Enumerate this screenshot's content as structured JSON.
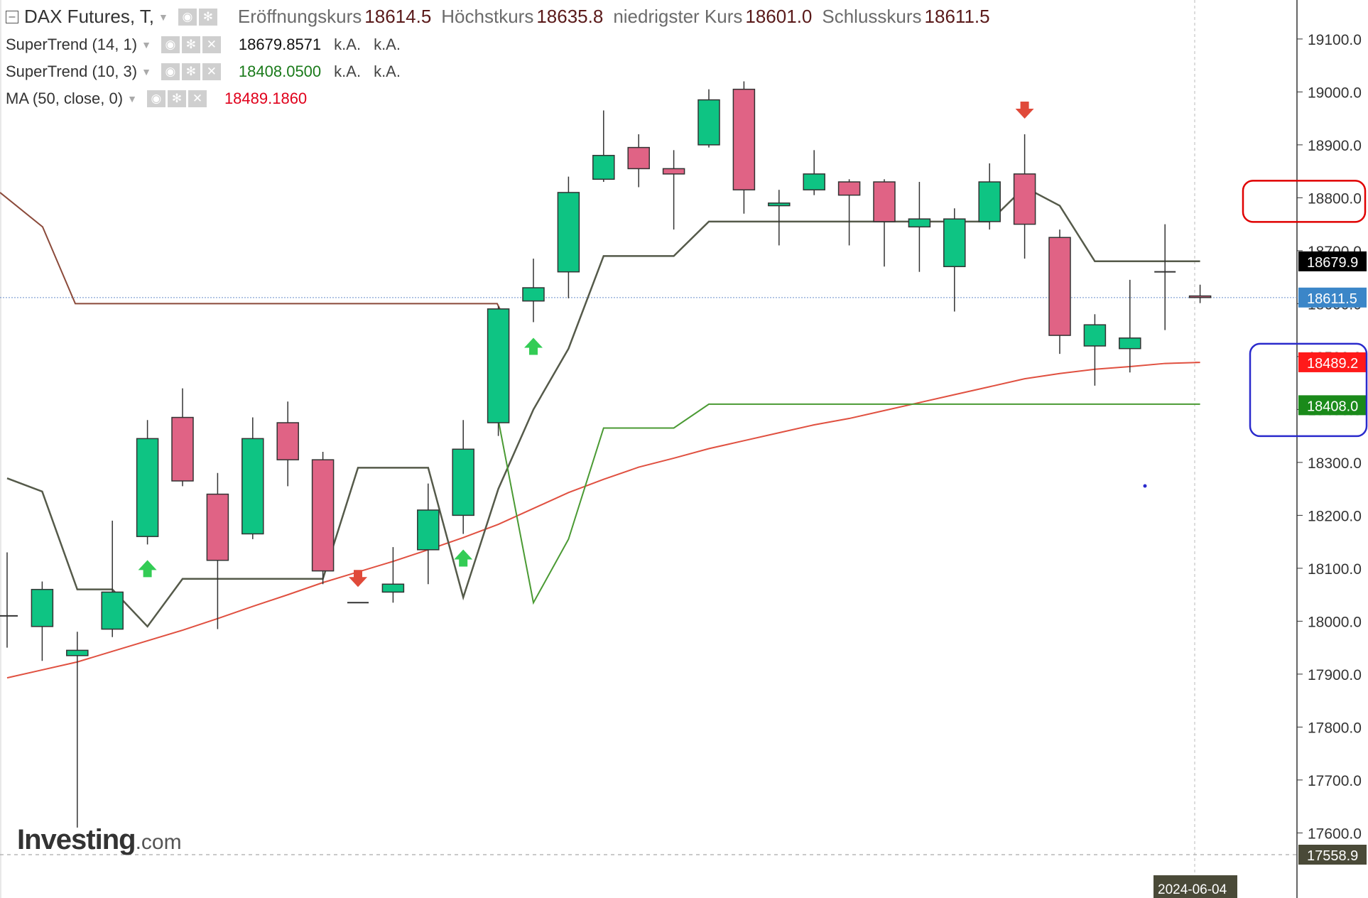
{
  "header": {
    "symbol": "DAX Futures, T,",
    "open_label": "Eröffnungskurs",
    "open_value": "18614.5",
    "high_label": "Höchstkurs",
    "high_value": "18635.8",
    "low_label": "niedrigster Kurs",
    "low_value": "18601.0",
    "close_label": "Schlusskurs",
    "close_value": "18611.5"
  },
  "indicators": [
    {
      "name": "SuperTrend (14, 1)",
      "value": "18679.8571",
      "extra1": "k.A.",
      "extra2": "k.A.",
      "color": "#111111"
    },
    {
      "name": "SuperTrend (10, 3)",
      "value": "18408.0500",
      "extra1": "k.A.",
      "extra2": "k.A.",
      "color": "#1a7a1a"
    },
    {
      "name": "MA (50, close, 0)",
      "value": "18489.1860",
      "color": "#e0001b"
    }
  ],
  "brand": {
    "name": "Investing",
    "suffix": ".com"
  },
  "colors": {
    "bull": "#0ec483",
    "bear": "#e06385",
    "candle_outline": "#333333",
    "st14": "#555a4a",
    "st14_upper": "#8b4a3a",
    "st10": "#4a9a33",
    "ma": "#e05040",
    "grid_dash": "#aaaaaa",
    "highlight_red": "#e00000",
    "highlight_blue": "#2a2acc"
  },
  "chart_data": {
    "type": "candlestick",
    "ylim": [
      17558.9,
      19150
    ],
    "yticks": [
      19100,
      19000,
      18900,
      18800,
      18700,
      18600,
      18500,
      18400,
      18300,
      18200,
      18100,
      18000,
      17900,
      17800,
      17700,
      17600
    ],
    "ytick_labels": [
      "19100.0",
      "19000.0",
      "18900.0",
      "18800.0",
      "18700.0",
      "18600.0",
      "18500.0",
      "18400.0",
      "18300.0",
      "18200.0",
      "18100.0",
      "18000.0",
      "17900.0",
      "17800.0",
      "17700.0",
      "17600.0"
    ],
    "xaxis_label": "2024-06-04",
    "candles": [
      {
        "o": 18010,
        "h": 18130,
        "l": 17950,
        "c": 18010
      },
      {
        "o": 17990,
        "h": 18075,
        "l": 17925,
        "c": 18060
      },
      {
        "o": 17935,
        "h": 17980,
        "l": 17610,
        "c": 17945
      },
      {
        "o": 17985,
        "h": 18190,
        "l": 17970,
        "c": 18055
      },
      {
        "o": 18160,
        "h": 18380,
        "l": 18145,
        "c": 18345
      },
      {
        "o": 18385,
        "h": 18440,
        "l": 18255,
        "c": 18265
      },
      {
        "o": 18240,
        "h": 18280,
        "l": 17985,
        "c": 18115
      },
      {
        "o": 18165,
        "h": 18385,
        "l": 18155,
        "c": 18345
      },
      {
        "o": 18375,
        "h": 18415,
        "l": 18255,
        "c": 18305
      },
      {
        "o": 18305,
        "h": 18320,
        "l": 18070,
        "c": 18095
      },
      {
        "o": 18035,
        "h": 18035,
        "l": 18035,
        "c": 18035
      },
      {
        "o": 18055,
        "h": 18140,
        "l": 18035,
        "c": 18070
      },
      {
        "o": 18135,
        "h": 18260,
        "l": 18070,
        "c": 18210
      },
      {
        "o": 18200,
        "h": 18380,
        "l": 18165,
        "c": 18325
      },
      {
        "o": 18375,
        "h": 18595,
        "l": 18350,
        "c": 18590
      },
      {
        "o": 18605,
        "h": 18685,
        "l": 18565,
        "c": 18630
      },
      {
        "o": 18660,
        "h": 18840,
        "l": 18610,
        "c": 18810
      },
      {
        "o": 18835,
        "h": 18965,
        "l": 18830,
        "c": 18880
      },
      {
        "o": 18895,
        "h": 18920,
        "l": 18820,
        "c": 18855
      },
      {
        "o": 18855,
        "h": 18890,
        "l": 18740,
        "c": 18845
      },
      {
        "o": 18900,
        "h": 19005,
        "l": 18895,
        "c": 18985
      },
      {
        "o": 19005,
        "h": 19020,
        "l": 18770,
        "c": 18815
      },
      {
        "o": 18785,
        "h": 18815,
        "l": 18710,
        "c": 18790
      },
      {
        "o": 18815,
        "h": 18890,
        "l": 18805,
        "c": 18845
      },
      {
        "o": 18830,
        "h": 18835,
        "l": 18710,
        "c": 18805
      },
      {
        "o": 18830,
        "h": 18835,
        "l": 18670,
        "c": 18755
      },
      {
        "o": 18745,
        "h": 18830,
        "l": 18660,
        "c": 18760
      },
      {
        "o": 18670,
        "h": 18780,
        "l": 18585,
        "c": 18760
      },
      {
        "o": 18755,
        "h": 18865,
        "l": 18740,
        "c": 18830
      },
      {
        "o": 18845,
        "h": 18920,
        "l": 18685,
        "c": 18750
      },
      {
        "o": 18725,
        "h": 18740,
        "l": 18505,
        "c": 18540
      },
      {
        "o": 18520,
        "h": 18580,
        "l": 18445,
        "c": 18560
      },
      {
        "o": 18515,
        "h": 18645,
        "l": 18470,
        "c": 18535
      },
      {
        "o": 18660,
        "h": 18750,
        "l": 18550,
        "c": 18660
      },
      {
        "o": 18614.5,
        "h": 18635.8,
        "l": 18601.0,
        "c": 18611.5
      }
    ],
    "series": [
      {
        "name": "SuperTrend (14, 1)",
        "values": [
          18270,
          18245,
          18060,
          18060,
          17990,
          18080,
          18080,
          18080,
          18080,
          18080,
          18290,
          18290,
          18290,
          18045,
          18250,
          18400,
          18515,
          18690,
          18690,
          18690,
          18755,
          18755,
          18755,
          18755,
          18755,
          18755,
          18755,
          18755,
          18755,
          18820,
          18785,
          18680,
          18680,
          18680,
          18680
        ],
        "last": 18679.8571
      },
      {
        "name": "SuperTrend (10, 3)",
        "values": [
          null,
          null,
          null,
          null,
          null,
          null,
          null,
          null,
          null,
          null,
          null,
          null,
          null,
          null,
          18380,
          18035,
          18155,
          18365,
          18365,
          18365,
          18410,
          18410,
          18410,
          18410,
          18410,
          18410,
          18410,
          18410,
          18410,
          18410,
          18410,
          18410,
          18410,
          18410,
          18410
        ],
        "last": 18408.05
      },
      {
        "name": "MA (50, close, 0)",
        "values": [
          17893,
          17908,
          17923,
          17943,
          17963,
          17983,
          18005,
          18028,
          18050,
          18073,
          18093,
          18113,
          18135,
          18158,
          18183,
          18213,
          18243,
          18268,
          18291,
          18308,
          18326,
          18341,
          18356,
          18371,
          18383,
          18398,
          18413,
          18428,
          18443,
          18458,
          18468,
          18476,
          18481,
          18487,
          18489
        ],
        "last": 18489.186
      }
    ],
    "supertrend_upper": {
      "first_values": [
        18810,
        18745,
        18600,
        18600
      ],
      "level": 18600
    },
    "buy_arrows": [
      4,
      13,
      15
    ],
    "sell_arrows": [
      10,
      29
    ]
  }
}
